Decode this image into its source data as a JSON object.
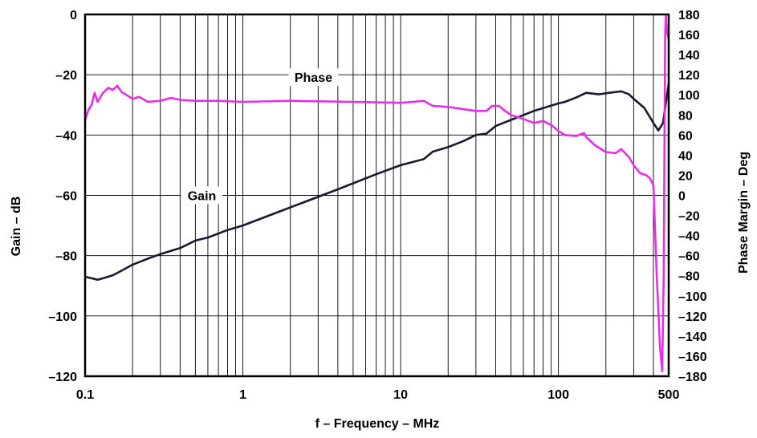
{
  "chart_data": {
    "type": "line",
    "x_scale": "log",
    "xlim": [
      0.1,
      500
    ],
    "ylim": [
      -120,
      0
    ],
    "y2lim": [
      -180,
      180
    ],
    "grid": true,
    "xlabel": "f – Frequency – MHz",
    "ylabel": "Gain – dB",
    "y2label": "Phase Margin – Deg",
    "x_ticks": [
      {
        "value": 0.1,
        "label": "0.1"
      },
      {
        "value": 1,
        "label": "1"
      },
      {
        "value": 10,
        "label": "10"
      },
      {
        "value": 100,
        "label": "100"
      },
      {
        "value": 500,
        "label": "500"
      }
    ],
    "y_ticks": [
      {
        "value": 0,
        "label": "0"
      },
      {
        "value": -20,
        "label": "–20"
      },
      {
        "value": -40,
        "label": "–40"
      },
      {
        "value": -60,
        "label": "–60"
      },
      {
        "value": -80,
        "label": "–80"
      },
      {
        "value": -100,
        "label": "–100"
      },
      {
        "value": -120,
        "label": "–120"
      }
    ],
    "y2_ticks": [
      {
        "value": 180,
        "label": "180"
      },
      {
        "value": 160,
        "label": "160"
      },
      {
        "value": 140,
        "label": "140"
      },
      {
        "value": 120,
        "label": "120"
      },
      {
        "value": 100,
        "label": "100"
      },
      {
        "value": 80,
        "label": "80"
      },
      {
        "value": 60,
        "label": "60"
      },
      {
        "value": 40,
        "label": "40"
      },
      {
        "value": 20,
        "label": "20"
      },
      {
        "value": 0,
        "label": "0"
      },
      {
        "value": -20,
        "label": "–20"
      },
      {
        "value": -40,
        "label": "–40"
      },
      {
        "value": -60,
        "label": "–60"
      },
      {
        "value": -80,
        "label": "–80"
      },
      {
        "value": -100,
        "label": "–100"
      },
      {
        "value": -120,
        "label": "–120"
      },
      {
        "value": -140,
        "label": "–140"
      },
      {
        "value": -160,
        "label": "–160"
      },
      {
        "value": -180,
        "label": "–180"
      }
    ],
    "series": [
      {
        "name": "Gain",
        "axis": "left",
        "color": "#1a1a2e",
        "points": [
          [
            0.1,
            -87
          ],
          [
            0.11,
            -87.5
          ],
          [
            0.12,
            -88
          ],
          [
            0.13,
            -87.5
          ],
          [
            0.15,
            -86.5
          ],
          [
            0.17,
            -85
          ],
          [
            0.2,
            -83
          ],
          [
            0.25,
            -81
          ],
          [
            0.3,
            -79.5
          ],
          [
            0.4,
            -77.5
          ],
          [
            0.5,
            -75
          ],
          [
            0.6,
            -74
          ],
          [
            0.8,
            -71.5
          ],
          [
            1,
            -70
          ],
          [
            1.5,
            -66.5
          ],
          [
            2,
            -64
          ],
          [
            3,
            -60.5
          ],
          [
            4,
            -58
          ],
          [
            5,
            -56
          ],
          [
            7,
            -53
          ],
          [
            10,
            -50
          ],
          [
            14,
            -48
          ],
          [
            16,
            -45.5
          ],
          [
            20,
            -44
          ],
          [
            25,
            -42
          ],
          [
            30,
            -40
          ],
          [
            35,
            -39.5
          ],
          [
            40,
            -37
          ],
          [
            50,
            -35
          ],
          [
            70,
            -32
          ],
          [
            100,
            -29.5
          ],
          [
            110,
            -29
          ],
          [
            130,
            -27.5
          ],
          [
            150,
            -26
          ],
          [
            180,
            -26.5
          ],
          [
            210,
            -26
          ],
          [
            250,
            -25.5
          ],
          [
            280,
            -26.5
          ],
          [
            300,
            -28
          ],
          [
            350,
            -31
          ],
          [
            400,
            -36
          ],
          [
            430,
            -38.5
          ],
          [
            460,
            -36
          ],
          [
            500,
            -23
          ]
        ]
      },
      {
        "name": "Phase",
        "axis": "right",
        "color": "#e52ee5",
        "points": [
          [
            0.1,
            75
          ],
          [
            0.105,
            85
          ],
          [
            0.11,
            90
          ],
          [
            0.115,
            102
          ],
          [
            0.12,
            93
          ],
          [
            0.13,
            102
          ],
          [
            0.14,
            107
          ],
          [
            0.15,
            105
          ],
          [
            0.16,
            109
          ],
          [
            0.17,
            103
          ],
          [
            0.2,
            96
          ],
          [
            0.22,
            98
          ],
          [
            0.25,
            93
          ],
          [
            0.3,
            94
          ],
          [
            0.35,
            97
          ],
          [
            0.4,
            95
          ],
          [
            0.5,
            94
          ],
          [
            0.7,
            94
          ],
          [
            1,
            93
          ],
          [
            2,
            94
          ],
          [
            5,
            93
          ],
          [
            10,
            92
          ],
          [
            12,
            93
          ],
          [
            14,
            94
          ],
          [
            16,
            89
          ],
          [
            20,
            88
          ],
          [
            30,
            84
          ],
          [
            35,
            84
          ],
          [
            38,
            89
          ],
          [
            42,
            89
          ],
          [
            45,
            85
          ],
          [
            50,
            80
          ],
          [
            60,
            76
          ],
          [
            70,
            72
          ],
          [
            80,
            74
          ],
          [
            90,
            70
          ],
          [
            100,
            64
          ],
          [
            110,
            60
          ],
          [
            130,
            59
          ],
          [
            145,
            62
          ],
          [
            150,
            58
          ],
          [
            170,
            50
          ],
          [
            200,
            43
          ],
          [
            230,
            42
          ],
          [
            250,
            46
          ],
          [
            280,
            38
          ],
          [
            300,
            30
          ],
          [
            330,
            22
          ],
          [
            360,
            20
          ],
          [
            380,
            17
          ],
          [
            400,
            10
          ],
          [
            420,
            -80
          ],
          [
            440,
            -150
          ],
          [
            455,
            -175
          ],
          [
            465,
            -80
          ],
          [
            475,
            160
          ],
          [
            480,
            180
          ],
          [
            485,
            165
          ],
          [
            500,
            155
          ]
        ]
      }
    ],
    "annotations": [
      {
        "text": "Phase",
        "x": 2.8,
        "y": -20.8,
        "axis": "left"
      },
      {
        "text": "Gain",
        "x": 0.55,
        "y": -60,
        "axis": "left"
      }
    ]
  }
}
